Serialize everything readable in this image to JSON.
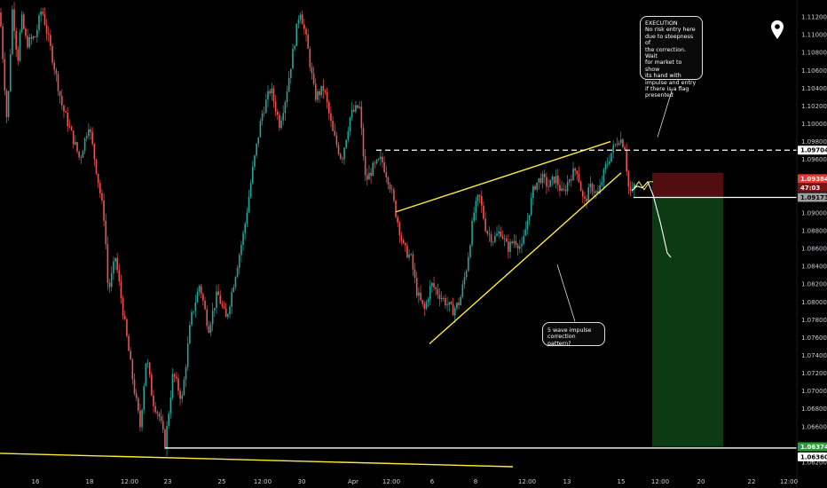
{
  "colors": {
    "up": "#26a69a",
    "down": "#ef5350",
    "trend": "#ffeb3b",
    "loss_zone": "#5a0e12",
    "profit_zone": "#0c3d14",
    "current_bg": "#e53935",
    "stop_bg": "#9e9e9e",
    "target_bg": "#2e9b3a"
  },
  "icons": {
    "location": "map-pin-icon"
  },
  "annotations": {
    "execution": "EXECUTION\nNo risk entry here\ndue to steepness of\nthe correction. Wait\nfor market to show\nits hand with\nimpulse and entry\nif there is a flag\npresented",
    "wave": "5 wave impulse\ncorrection pattern?"
  },
  "price_tags": {
    "level_dashed": "1.09704",
    "current": "1.09384",
    "countdown": "47:03",
    "entry": "1.09173",
    "target": "1.06374",
    "low_level": "1.06360"
  },
  "chart_data": {
    "type": "candlestick",
    "title": "",
    "y_ticks": [
      "1.11200",
      "1.11000",
      "1.10800",
      "1.10600",
      "1.10400",
      "1.10200",
      "1.10000",
      "1.09800",
      "1.09600",
      "1.09400",
      "1.09200",
      "1.09000",
      "1.08800",
      "1.08600",
      "1.08400",
      "1.08200",
      "1.08000",
      "1.07800",
      "1.07600",
      "1.07400",
      "1.07200",
      "1.07000",
      "1.06800",
      "1.06600",
      "1.06400",
      "1.06200"
    ],
    "x_ticks": [
      "16",
      "18",
      "12:00",
      "23",
      "25",
      "12:00",
      "30",
      "Apr",
      "12:00",
      "6",
      "8",
      "12:00",
      "13",
      "15",
      "12:00",
      "20",
      "22",
      "12:00"
    ],
    "ylim": [
      1.0615,
      1.1133
    ],
    "anchors": [
      [
        0,
        1.1125
      ],
      [
        8,
        1.1
      ],
      [
        14,
        1.113
      ],
      [
        20,
        1.107
      ],
      [
        24,
        1.112
      ],
      [
        30,
        1.109
      ],
      [
        40,
        1.1098
      ],
      [
        47,
        1.113
      ],
      [
        60,
        1.107
      ],
      [
        70,
        1.102
      ],
      [
        80,
        1.099
      ],
      [
        90,
        1.096
      ],
      [
        100,
        1.1
      ],
      [
        110,
        1.094
      ],
      [
        118,
        1.089
      ],
      [
        122,
        1.081
      ],
      [
        130,
        1.085
      ],
      [
        140,
        1.078
      ],
      [
        150,
        1.071
      ],
      [
        158,
        1.066
      ],
      [
        165,
        1.074
      ],
      [
        172,
        1.069
      ],
      [
        180,
        1.067
      ],
      [
        186,
        1.064
      ],
      [
        195,
        1.072
      ],
      [
        205,
        1.069
      ],
      [
        215,
        1.078
      ],
      [
        225,
        1.082
      ],
      [
        235,
        1.077
      ],
      [
        245,
        1.081
      ],
      [
        255,
        1.078
      ],
      [
        265,
        1.083
      ],
      [
        275,
        1.088
      ],
      [
        285,
        1.095
      ],
      [
        295,
        1.101
      ],
      [
        305,
        1.104
      ],
      [
        315,
        1.1
      ],
      [
        322,
        1.103
      ],
      [
        330,
        1.108
      ],
      [
        338,
        1.113
      ],
      [
        346,
        1.109
      ],
      [
        355,
        1.103
      ],
      [
        365,
        1.104
      ],
      [
        375,
        1.099
      ],
      [
        385,
        1.096
      ],
      [
        395,
        1.101
      ],
      [
        405,
        1.102
      ],
      [
        412,
        1.0935
      ],
      [
        420,
        1.095
      ],
      [
        430,
        1.096
      ],
      [
        440,
        1.093
      ],
      [
        446,
        1.09
      ],
      [
        455,
        1.086
      ],
      [
        463,
        1.085
      ],
      [
        470,
        1.081
      ],
      [
        478,
        1.079
      ],
      [
        486,
        1.082
      ],
      [
        494,
        1.081
      ],
      [
        502,
        1.08
      ],
      [
        510,
        1.079
      ],
      [
        518,
        1.08
      ],
      [
        526,
        1.084
      ],
      [
        534,
        1.09
      ],
      [
        540,
        1.092
      ],
      [
        548,
        1.088
      ],
      [
        556,
        1.087
      ],
      [
        564,
        1.088
      ],
      [
        572,
        1.086
      ],
      [
        580,
        1.087
      ],
      [
        588,
        1.086
      ],
      [
        596,
        1.09
      ],
      [
        602,
        1.093
      ],
      [
        610,
        1.094
      ],
      [
        618,
        1.093
      ],
      [
        626,
        1.094
      ],
      [
        634,
        1.092
      ],
      [
        642,
        1.094
      ],
      [
        650,
        1.095
      ],
      [
        658,
        1.091
      ],
      [
        666,
        1.093
      ],
      [
        674,
        1.092
      ],
      [
        682,
        1.095
      ],
      [
        690,
        1.097
      ],
      [
        698,
        1.0985
      ],
      [
        704,
        1.0975
      ],
      [
        708,
        1.093
      ],
      [
        712,
        1.092
      ],
      [
        716,
        1.0935
      ]
    ],
    "trendlines": [
      {
        "x1": 0,
        "y1": 1.063,
        "x2": 578,
        "y2": 1.0615
      },
      {
        "x1": 446,
        "y1": 1.0901,
        "x2": 688,
        "y2": 1.098
      },
      {
        "x1": 484,
        "y1": 1.0753,
        "x2": 700,
        "y2": 1.0945
      }
    ],
    "dashed_level": 1.09704,
    "low_level": 1.0636,
    "position": {
      "entry": 1.09173,
      "stop": 1.09384,
      "stop_top": 1.0945,
      "target": 1.06374,
      "x1": 735,
      "x2": 815
    },
    "projection": [
      [
        712,
        1.0925
      ],
      [
        718,
        1.093
      ],
      [
        724,
        1.0928
      ],
      [
        730,
        1.0935
      ],
      [
        736,
        1.092
      ],
      [
        744,
        1.089
      ],
      [
        752,
        1.0855
      ],
      [
        756,
        1.085
      ]
    ],
    "flag": [
      [
        714,
        1.0927
      ],
      [
        720,
        1.0935
      ],
      [
        726,
        1.0926
      ],
      [
        732,
        1.0935
      ],
      [
        736,
        1.0935
      ]
    ],
    "pointer_lines": [
      {
        "x1": 741,
        "y1": 1.0985,
        "x2": 758,
        "y2": 1.104
      },
      {
        "x1": 628,
        "y1": 1.0842,
        "x2": 648,
        "y2": 1.0778
      }
    ],
    "plot_right": 898
  }
}
